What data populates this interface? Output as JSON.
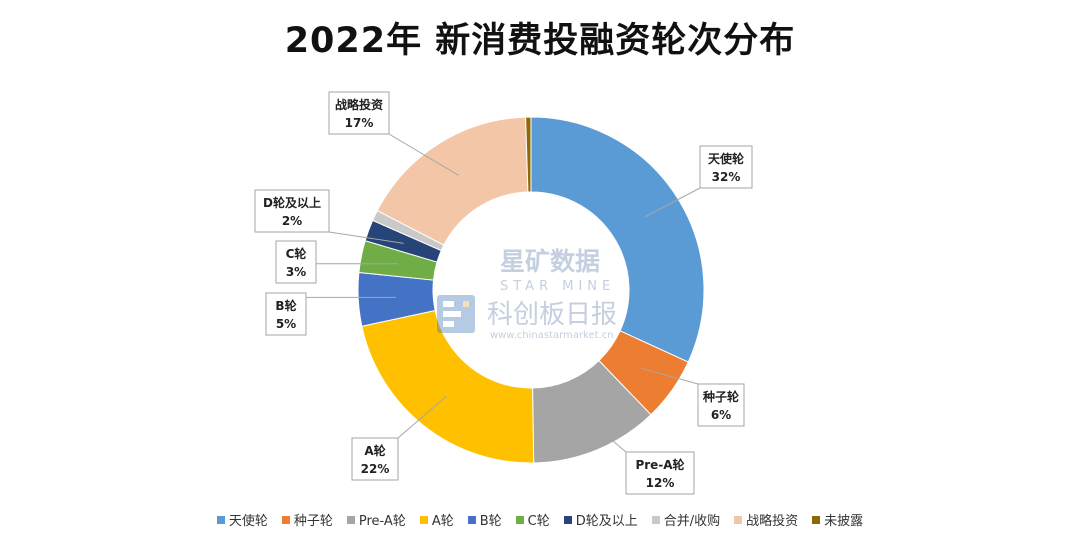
{
  "chart_data": {
    "type": "pie",
    "title": "2022年 新消费投融资轮次分布",
    "categories": [
      "天使轮",
      "种子轮",
      "Pre-A轮",
      "A轮",
      "B轮",
      "C轮",
      "D轮及以上",
      "合并/收购",
      "战略投资",
      "未披露"
    ],
    "values": [
      32,
      6,
      12,
      22,
      5,
      3,
      2,
      1,
      17,
      0.5
    ],
    "value_labels": [
      "32%",
      "6%",
      "12%",
      "22%",
      "5%",
      "3%",
      "2%",
      "",
      "17%",
      ""
    ],
    "colors": [
      "#5b9bd5",
      "#ed7d31",
      "#a5a5a5",
      "#ffc000",
      "#4472c4",
      "#70ad47",
      "#264478",
      "#c9c9c9",
      "#f4c6a8",
      "#8d6a0a"
    ],
    "donut": true,
    "legend_position": "bottom"
  },
  "watermark": {
    "brand_cn": "星矿数据",
    "brand_en": "STAR MINE",
    "name_cn": "科创板日报",
    "url": "www.chinastarmarket.cn"
  }
}
